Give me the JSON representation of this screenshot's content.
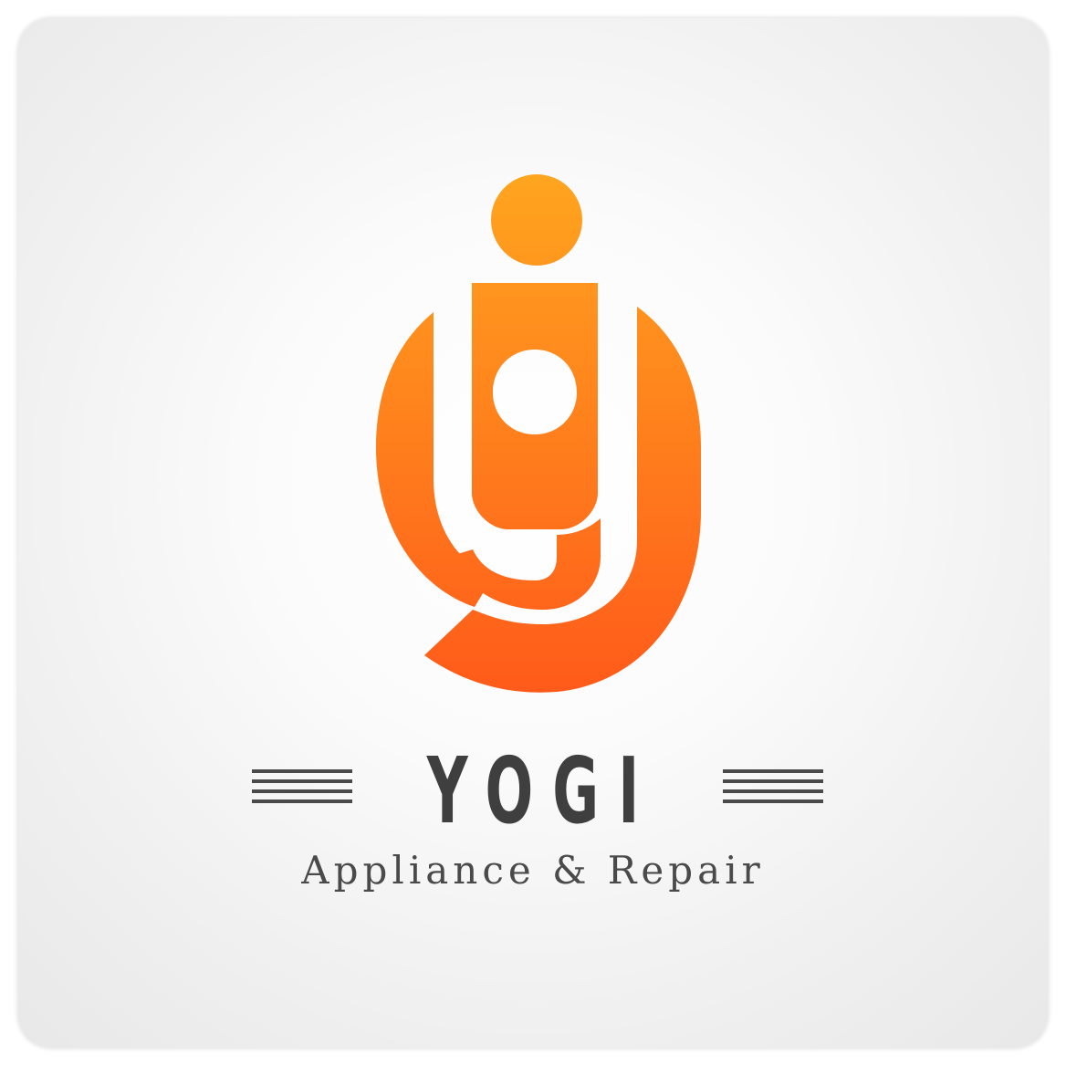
{
  "brand": {
    "name": "YOGI",
    "tagline": "Appliance & Repair",
    "mark_letters": "yg"
  },
  "colors": {
    "gradient_top": "#FFA51F",
    "gradient_bottom": "#FF5A1A",
    "text": "#3F3F3F",
    "rules": "#4A4A4A",
    "background": "#FFFFFF"
  },
  "icons": {
    "logo": "yogi-person-g-icon",
    "decoration": "horizontal-rules"
  }
}
